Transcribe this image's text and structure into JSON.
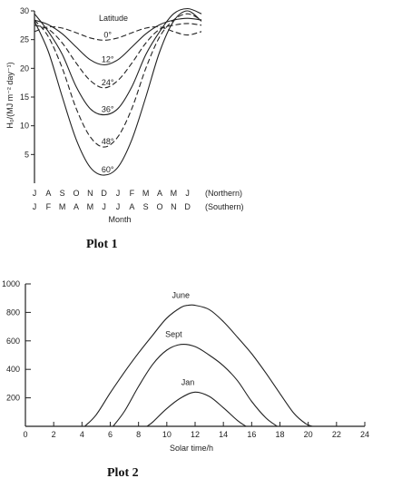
{
  "plot1": {
    "caption": "Plot 1",
    "chart_data": {
      "type": "line",
      "ylabel": "H₀/(MJ m⁻² day⁻¹)",
      "xlabel": "Month",
      "legend_title": "Latitude",
      "ylim": [
        0,
        30
      ],
      "yticks": [
        5,
        10,
        15,
        20,
        25,
        30
      ],
      "x": [
        0,
        1,
        2,
        3,
        4,
        5,
        6,
        7,
        8,
        9,
        10,
        11,
        12
      ],
      "x_months_northern": [
        "J",
        "A",
        "S",
        "O",
        "N",
        "D",
        "J",
        "F",
        "M",
        "A",
        "M",
        "J"
      ],
      "x_months_southern": [
        "J",
        "F",
        "M",
        "A",
        "M",
        "J",
        "J",
        "A",
        "S",
        "O",
        "N",
        "D"
      ],
      "northern_label": "(Northern)",
      "southern_label": "(Southern)",
      "series": [
        {
          "name": "0°",
          "style": "dashed",
          "values": [
            26.4,
            27.2,
            27.0,
            26.2,
            25.3,
            24.9,
            25.3,
            26.2,
            27.0,
            27.2,
            26.4,
            25.8,
            26.4
          ]
        },
        {
          "name": "12°",
          "style": "solid",
          "values": [
            28.4,
            27.6,
            26.0,
            23.7,
            21.5,
            20.6,
            21.5,
            23.7,
            26.0,
            27.6,
            28.4,
            28.7,
            28.4
          ]
        },
        {
          "name": "24°",
          "style": "dashed",
          "values": [
            27.5,
            26.8,
            24.4,
            20.9,
            17.9,
            16.6,
            17.9,
            20.9,
            24.4,
            26.8,
            27.5,
            27.8,
            27.5
          ]
        },
        {
          "name": "36°",
          "style": "solid",
          "values": [
            29.5,
            26.4,
            22.4,
            16.8,
            13.0,
            11.9,
            13.0,
            16.8,
            22.4,
            26.4,
            29.5,
            30.4,
            29.5
          ]
        },
        {
          "name": "48°",
          "style": "dashed",
          "values": [
            28.4,
            25.5,
            20.0,
            13.0,
            8.1,
            6.3,
            8.1,
            13.0,
            20.0,
            25.5,
            28.4,
            29.5,
            28.4
          ]
        },
        {
          "name": "60°",
          "style": "solid",
          "values": [
            28.2,
            22.9,
            15.0,
            7.6,
            2.8,
            1.4,
            2.8,
            7.6,
            15.0,
            22.9,
            28.2,
            30.0,
            28.2
          ]
        }
      ]
    }
  },
  "plot2": {
    "caption": "Plot 2",
    "chart_data": {
      "type": "line",
      "xlabel": "Solar time/h",
      "ylabel": "",
      "xlim": [
        0,
        24
      ],
      "ylim": [
        0,
        1000
      ],
      "xticks": [
        0,
        2,
        4,
        6,
        8,
        10,
        12,
        14,
        16,
        18,
        20,
        22,
        24
      ],
      "yticks": [
        200,
        400,
        600,
        800,
        1000
      ],
      "series": [
        {
          "name": "June",
          "x": [
            4.2,
            5,
            6,
            7,
            8,
            9,
            10,
            11,
            11.5,
            12,
            13,
            14,
            15,
            16,
            17,
            18,
            19,
            19.8,
            20.3
          ],
          "values": [
            0,
            80,
            235,
            380,
            515,
            640,
            760,
            835,
            850,
            850,
            820,
            735,
            625,
            510,
            375,
            230,
            90,
            20,
            0
          ]
        },
        {
          "name": "Sept",
          "x": [
            6.2,
            7,
            8,
            9,
            10,
            11,
            12,
            13,
            14,
            15,
            16,
            17,
            17.8
          ],
          "values": [
            0,
            105,
            280,
            435,
            535,
            575,
            560,
            500,
            425,
            320,
            175,
            60,
            0
          ]
        },
        {
          "name": "Jan",
          "x": [
            8.6,
            9,
            10,
            11,
            12,
            13,
            14,
            15,
            15.6
          ],
          "values": [
            0,
            30,
            125,
            200,
            240,
            210,
            130,
            40,
            0
          ]
        }
      ]
    }
  }
}
